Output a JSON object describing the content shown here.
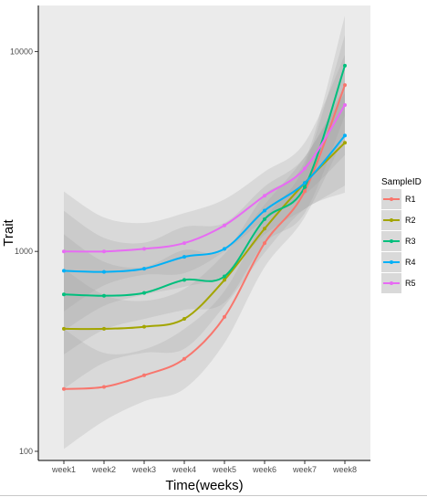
{
  "chart_data": {
    "type": "line",
    "title": "",
    "xlabel": "Time(weeks)",
    "ylabel": "Trait",
    "y_scale": "log10",
    "ylim": [
      90,
      17000
    ],
    "y_ticks": [
      "100",
      "1000",
      "10000"
    ],
    "categories": [
      "week1",
      "week2",
      "week3",
      "week4",
      "week5",
      "week6",
      "week7",
      "week8"
    ],
    "grid": false,
    "smoothed_with_confidence_band": true,
    "legend": {
      "title": "SampleID",
      "placement": "right"
    },
    "series": [
      {
        "name": "R1",
        "color": "#F8766D",
        "values": [
          205,
          210,
          240,
          290,
          470,
          1100,
          2000,
          6800
        ]
      },
      {
        "name": "R2",
        "color": "#A3A500",
        "values": [
          410,
          410,
          420,
          460,
          720,
          1300,
          2200,
          3500
        ]
      },
      {
        "name": "R3",
        "color": "#00BF7D",
        "values": [
          610,
          600,
          620,
          720,
          750,
          1450,
          2100,
          8500
        ]
      },
      {
        "name": "R4",
        "color": "#00B0F6",
        "values": [
          800,
          790,
          820,
          940,
          1030,
          1600,
          2200,
          3800
        ]
      },
      {
        "name": "R5",
        "color": "#E76BF3",
        "values": [
          1000,
          1000,
          1030,
          1100,
          1350,
          1900,
          2600,
          5400
        ]
      }
    ]
  }
}
